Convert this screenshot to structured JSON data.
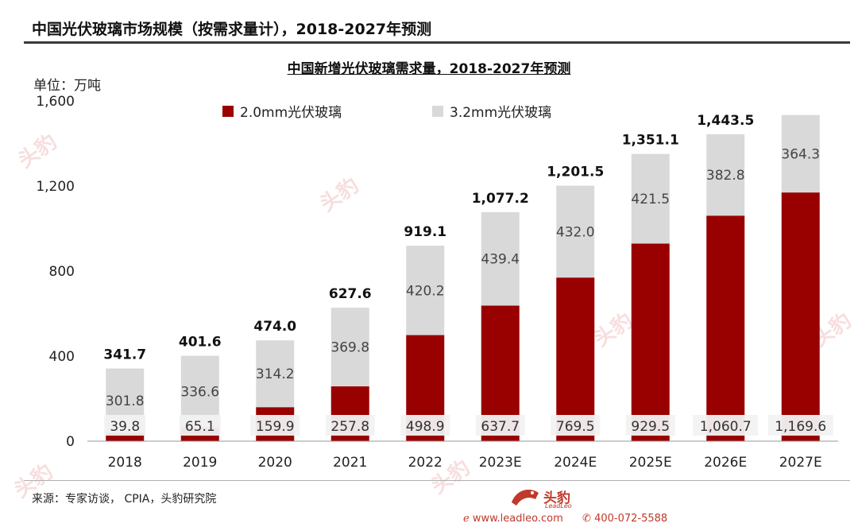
{
  "page_title": "中国光伏玻璃市场规模（按需求量计），2018-2027年预测",
  "chart_title": "中国新增光伏玻璃需求量，2018-2027年预测",
  "unit_label": "单位：万吨",
  "source": "来源：专家访谈，  CPIA，头豹研究院",
  "brand": {
    "name": "头豹",
    "sub": "LeadLeo",
    "website": "www.leadleo.com",
    "phone": "400-072-5588",
    "watermark": "头豹"
  },
  "colors": {
    "series_2mm": "#990000",
    "series_32mm": "#d9d9d9",
    "brand_red": "#c0392b"
  },
  "chart_data": {
    "type": "bar",
    "stacked": true,
    "title": "中国新增光伏玻璃需求量，2018-2027年预测",
    "ylabel": "单位：万吨",
    "ylim": [
      0,
      1600
    ],
    "yticks": [
      "0",
      "400",
      "800",
      "1,200",
      "1,600"
    ],
    "ytick_values": [
      0,
      400,
      800,
      1200,
      1600
    ],
    "grid": false,
    "legend_position": "top-left",
    "categories": [
      "2018",
      "2019",
      "2020",
      "2021",
      "2022",
      "2023E",
      "2024E",
      "2025E",
      "2026E",
      "2027E"
    ],
    "series": [
      {
        "name": "2.0mm光伏玻璃",
        "values": [
          39.8,
          65.1,
          159.9,
          257.8,
          498.9,
          637.7,
          769.5,
          929.5,
          1060.7,
          1169.6
        ],
        "labels": [
          "39.8",
          "65.1",
          "159.9",
          "257.8",
          "498.9",
          "637.7",
          "769.5",
          "929.5",
          "1,060.7",
          "1,169.6"
        ]
      },
      {
        "name": "3.2mm光伏玻璃",
        "values": [
          301.8,
          336.6,
          314.2,
          369.8,
          420.2,
          439.4,
          432.0,
          421.5,
          382.8,
          364.3
        ],
        "labels": [
          "301.8",
          "336.6",
          "314.2",
          "369.8",
          "420.2",
          "439.4",
          "432.0",
          "421.5",
          "382.8",
          "364.3"
        ]
      }
    ],
    "totals": [
      341.7,
      401.6,
      474.0,
      627.6,
      919.1,
      1077.2,
      1201.5,
      1351.1,
      1443.5,
      1533.9
    ],
    "total_labels": [
      "341.7",
      "401.6",
      "474.0",
      "627.6",
      "919.1",
      "1,077.2",
      "1,201.5",
      "1,351.1",
      "1,443.5",
      ""
    ]
  }
}
